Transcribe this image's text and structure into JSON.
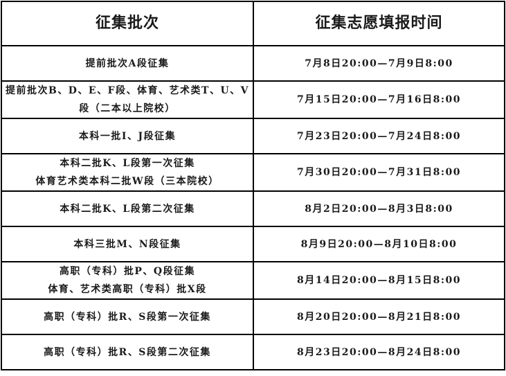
{
  "headers": [
    "征集批次",
    "征集志愿填报时间"
  ],
  "rows": [
    {
      "batch": [
        "提前批次A段征集"
      ],
      "time": "7月8日20:00—7月9日8:00"
    },
    {
      "batch": [
        "提前批次B、D、E、F段、体育、艺术类T、U、V",
        "段（二本以上院校）"
      ],
      "time": "7月15日20:00—7月16日8:00"
    },
    {
      "batch": [
        "本科一批I、J段征集"
      ],
      "time": "7月23日20:00—7月24日8:00"
    },
    {
      "batch": [
        "本科二批K、L段第一次征集",
        "体育艺术类本科二批W段（三本院校）"
      ],
      "time": "7月30日20:00—7月31日8:00"
    },
    {
      "batch": [
        "本科二批K、L段第二次征集"
      ],
      "time": "8月2日20:00—8月3日8:00"
    },
    {
      "batch": [
        "本科三批M、N段征集"
      ],
      "time": "8月9日20:00—8月10日8:00"
    },
    {
      "batch": [
        "高职（专科）批P、Q段征集",
        "体育、艺术类高职（专科）批X段"
      ],
      "time": "8月14日20:00—8月15日8:00"
    },
    {
      "batch": [
        "高职（专科）批R、S段第一次征集"
      ],
      "time": "8月20日20:00—8月21日8:00"
    },
    {
      "batch": [
        "高职（专科）批R、S段第二次征集"
      ],
      "time": "8月23日20:00—8月24日8:00"
    }
  ]
}
